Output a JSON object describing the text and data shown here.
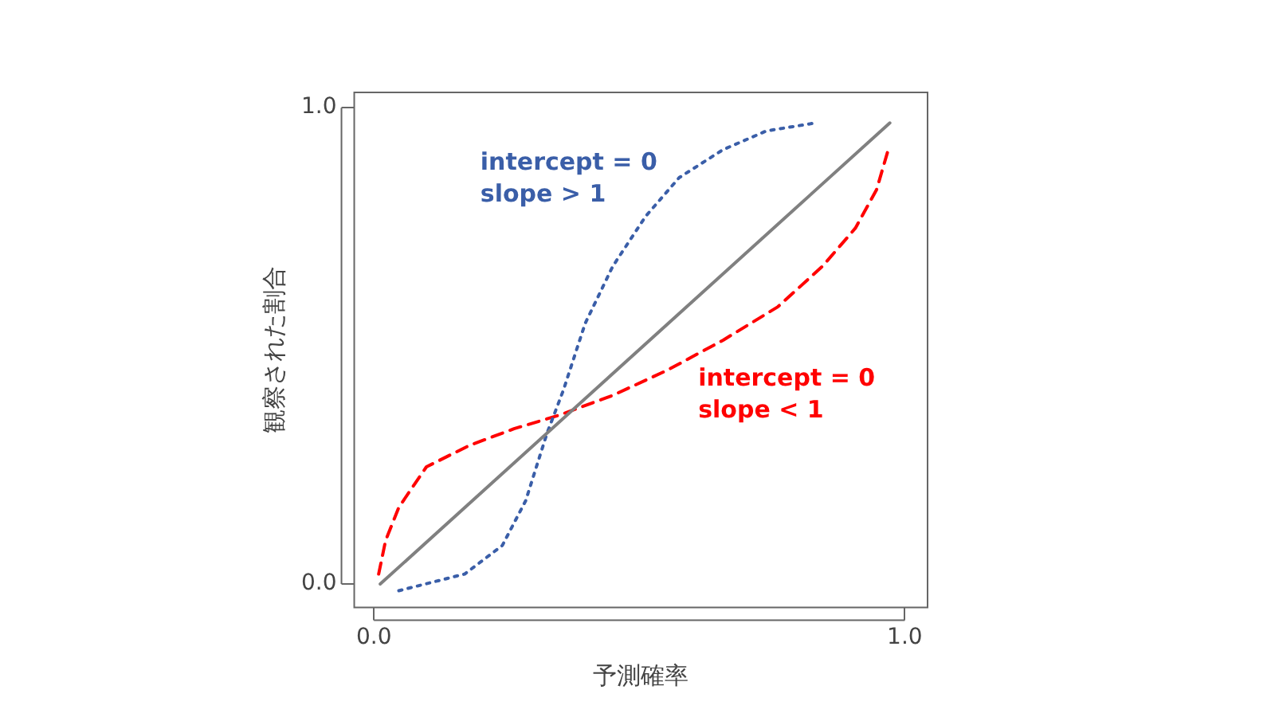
{
  "chart_data": {
    "type": "line",
    "xlabel": "予測確率",
    "ylabel": "観察された割合",
    "xlim": [
      -0.037,
      1.043
    ],
    "ylim": [
      -0.049,
      1.032
    ],
    "xticks": [
      {
        "value": 0,
        "label": "0.0"
      },
      {
        "value": 1,
        "label": "1.0"
      }
    ],
    "yticks": [
      {
        "value": 0,
        "label": "0.0"
      },
      {
        "value": 1,
        "label": "1.0"
      }
    ],
    "grid": false,
    "legend": false,
    "marker": "none",
    "series": [
      {
        "color": "#808080",
        "line_style": "solid",
        "x": [
          0.012,
          0.972
        ],
        "values": [
          0,
          0.968
        ]
      },
      {
        "name": "intercept = 0\nslope > 1",
        "color": "#3a5ea8",
        "line_style": "dotted",
        "x": [
          0.047,
          0.171,
          0.242,
          0.286,
          0.326,
          0.357,
          0.398,
          0.45,
          0.512,
          0.575,
          0.658,
          0.739,
          0.832
        ],
        "values": [
          -0.014,
          0.021,
          0.081,
          0.175,
          0.316,
          0.407,
          0.547,
          0.667,
          0.772,
          0.853,
          0.912,
          0.951,
          0.968
        ]
      },
      {
        "name": "intercept = 0\nslope < 1",
        "color": "#ff0000",
        "line_style": "dashed",
        "x": [
          0.009,
          0.022,
          0.047,
          0.099,
          0.18,
          0.264,
          0.348,
          0.45,
          0.553,
          0.658,
          0.761,
          0.845,
          0.907,
          0.947,
          0.969
        ],
        "values": [
          0.021,
          0.091,
          0.161,
          0.246,
          0.291,
          0.326,
          0.354,
          0.396,
          0.449,
          0.512,
          0.582,
          0.667,
          0.747,
          0.828,
          0.912
        ]
      }
    ]
  }
}
